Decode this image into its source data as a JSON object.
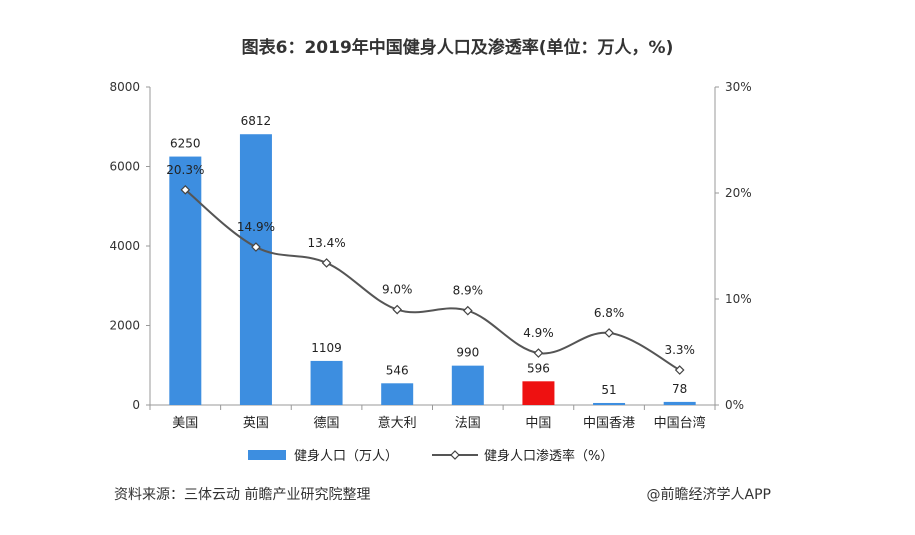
{
  "chart_data": {
    "type": "bar",
    "title": "图表6：2019年中国健身人口及渗透率(单位：万人，%)",
    "categories": [
      "美国",
      "英国",
      "德国",
      "意大利",
      "法国",
      "中国",
      "中国香港",
      "中国台湾"
    ],
    "series": [
      {
        "name": "健身人口（万人）",
        "type": "bar",
        "axis": "left",
        "values": [
          6250,
          6812,
          1109,
          546,
          990,
          596,
          51,
          78
        ],
        "labels": [
          "6250",
          "6812",
          "1109",
          "546",
          "990",
          "596",
          "51",
          "78"
        ],
        "color": "#3d8ee0",
        "highlight_index": 5,
        "highlight_color": "#ee1111"
      },
      {
        "name": "健身人口渗透率（%）",
        "type": "line",
        "axis": "right",
        "values": [
          20.3,
          14.9,
          13.4,
          9.0,
          8.9,
          4.9,
          6.8,
          3.3
        ],
        "labels": [
          "20.3%",
          "14.9%",
          "13.4%",
          "9.0%",
          "8.9%",
          "4.9%",
          "6.8%",
          "3.3%"
        ],
        "color": "#555555",
        "highlight_index": 5,
        "highlight_color": "#ee1111"
      }
    ],
    "y_left": {
      "lim": [
        0,
        8000
      ],
      "ticks": [
        "0",
        "2000",
        "4000",
        "6000",
        "8000"
      ]
    },
    "y_right": {
      "lim": [
        0,
        30
      ],
      "ticks": [
        "0%",
        "10%",
        "20%",
        "30%"
      ]
    },
    "legend": "bottom",
    "grid": false
  },
  "footer": {
    "source": "资料来源：三体云动 前瞻产业研究院整理",
    "credit": "@前瞻经济学人APP"
  }
}
